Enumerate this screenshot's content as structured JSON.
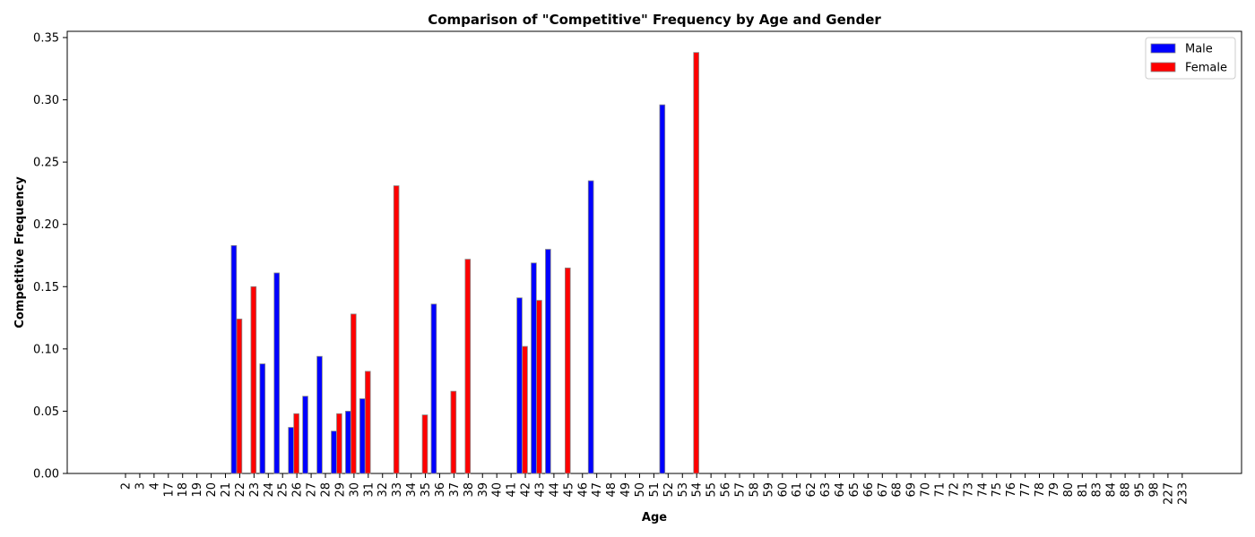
{
  "chart_data": {
    "type": "bar",
    "title": "Comparison of \"Competitive\" Frequency by Age and Gender",
    "xlabel": "Age",
    "ylabel": "Competitive Frequency",
    "ylim": [
      0,
      0.355
    ],
    "yticks": [
      "0.00",
      "0.05",
      "0.10",
      "0.15",
      "0.20",
      "0.25",
      "0.30",
      "0.35"
    ],
    "ytick_values": [
      0,
      0.05,
      0.1,
      0.15,
      0.2,
      0.25,
      0.3,
      0.35
    ],
    "grid": false,
    "legend": "top-right",
    "categories": [
      "2",
      "3",
      "4",
      "17",
      "18",
      "19",
      "20",
      "21",
      "22",
      "23",
      "24",
      "25",
      "26",
      "27",
      "28",
      "29",
      "30",
      "31",
      "32",
      "33",
      "34",
      "35",
      "36",
      "37",
      "38",
      "39",
      "40",
      "41",
      "42",
      "43",
      "44",
      "45",
      "46",
      "47",
      "48",
      "49",
      "50",
      "51",
      "52",
      "53",
      "54",
      "55",
      "56",
      "57",
      "58",
      "59",
      "60",
      "61",
      "62",
      "63",
      "64",
      "65",
      "66",
      "67",
      "68",
      "69",
      "70",
      "71",
      "72",
      "73",
      "74",
      "75",
      "76",
      "77",
      "78",
      "79",
      "80",
      "81",
      "83",
      "84",
      "88",
      "95",
      "98",
      "227",
      "233"
    ],
    "series": [
      {
        "name": "Male",
        "color": "#0000ff",
        "values": [
          0,
          0,
          0,
          0,
          0,
          0,
          0,
          0.183,
          0,
          0.088,
          0.161,
          0.037,
          0.062,
          0.094,
          0.034,
          0.05,
          0.06,
          0,
          0,
          0,
          0,
          0.136,
          0,
          0,
          0,
          0,
          0,
          0.141,
          0.169,
          0.18,
          0,
          0,
          0.235,
          0,
          0,
          0,
          0,
          0.296,
          0,
          0,
          0,
          0,
          0,
          0,
          0,
          0,
          0,
          0,
          0,
          0,
          0,
          0,
          0,
          0,
          0,
          0,
          0,
          0,
          0,
          0,
          0,
          0,
          0,
          0,
          0,
          0,
          0,
          0,
          0,
          0,
          0,
          0,
          0,
          0,
          0
        ]
      },
      {
        "name": "Female",
        "color": "#ff0000",
        "values": [
          0,
          0,
          0,
          0,
          0,
          0,
          0,
          0.124,
          0.15,
          0,
          0,
          0.048,
          0,
          0,
          0.048,
          0.128,
          0.082,
          0,
          0.231,
          0,
          0.047,
          0,
          0.066,
          0.172,
          0,
          0,
          0,
          0.102,
          0.139,
          0,
          0.165,
          0,
          0,
          0,
          0,
          0,
          0,
          0,
          0,
          0.338,
          0,
          0,
          0,
          0,
          0,
          0,
          0,
          0,
          0,
          0,
          0,
          0,
          0,
          0,
          0,
          0,
          0,
          0,
          0,
          0,
          0,
          0,
          0,
          0,
          0,
          0,
          0,
          0,
          0,
          0,
          0,
          0,
          0,
          0,
          0
        ]
      }
    ]
  }
}
